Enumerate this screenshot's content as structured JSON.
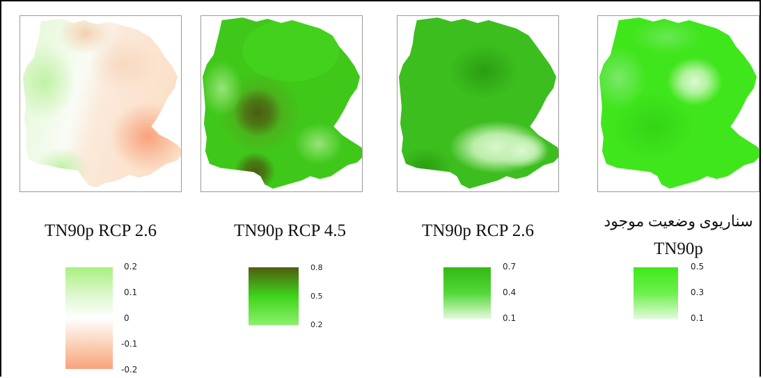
{
  "panels": [
    {
      "title_lines": [
        "TN90p RCP 2.6"
      ],
      "colors": {
        "base": "#f7fbf1",
        "high": "#a8f07e",
        "low": "#f8a27c"
      },
      "legend": {
        "ticks": [
          "0.2",
          "0.1",
          "0",
          "-0.1",
          "-0.2"
        ],
        "stops": [
          "#a8f07e",
          "#d9f7c8",
          "#ffffff",
          "#fbd3b8",
          "#f8a27c"
        ]
      }
    },
    {
      "title_lines": [
        "TN90p RCP 4.5"
      ],
      "colors": {
        "base": "#3ccc16",
        "dark": "#4a6411",
        "light": "#8ae06a"
      },
      "legend": {
        "ticks": [
          "0.8",
          "0.5",
          "0.2"
        ],
        "stops": [
          "#4f5d0f",
          "#3fd41a",
          "#8cf06e"
        ]
      }
    },
    {
      "title_lines": [
        "TN90p RCP 2.6"
      ],
      "colors": {
        "base": "#3ec01e",
        "dark": "#2ea812",
        "light": "#d7f7c8"
      },
      "legend": {
        "ticks": [
          "0.7",
          "0.4",
          "0.1"
        ],
        "stops": [
          "#34b816",
          "#52d838",
          "#e6fadc"
        ]
      }
    },
    {
      "title_lines": [
        "سناریوی وضعیت موجود",
        "TN90p"
      ],
      "colors": {
        "base": "#3ee81c",
        "light": "#d8f9cc"
      },
      "legend": {
        "ticks": [
          "0.5",
          "0.3",
          "0.1"
        ],
        "stops": [
          "#40e818",
          "#6cf04e",
          "#e2fad8"
        ]
      }
    }
  ]
}
